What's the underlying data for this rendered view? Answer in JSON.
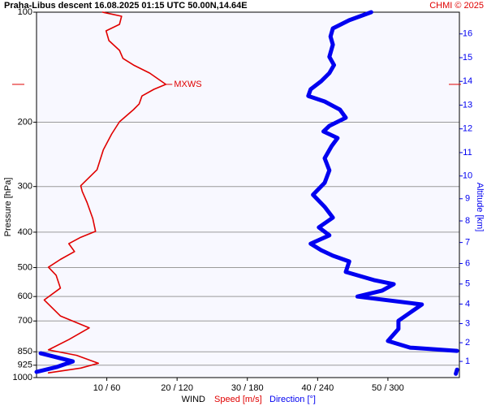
{
  "chart_data": {
    "type": "profile",
    "title": "Praha-Libus  descent   16.08.2025 01:15 UTC  50.00N,14.64E",
    "credit": "CHMI © 2025",
    "ylabel": "Pressure [hPa]",
    "y2label": "Altitude [km]",
    "xlabel": "WIND",
    "ylim": [
      100,
      1000
    ],
    "ylog": true,
    "y_inverted": true,
    "yticks": [
      100,
      200,
      300,
      400,
      500,
      600,
      700,
      850,
      925,
      1000
    ],
    "y2ticks": [
      1,
      2,
      3,
      4,
      5,
      6,
      7,
      8,
      9,
      10,
      11,
      12,
      13,
      14,
      15,
      16
    ],
    "xlim": [
      0,
      60
    ],
    "x2lim": [
      0,
      360
    ],
    "xticks": [
      {
        "value": 10,
        "label": "10 / 60"
      },
      {
        "value": 20,
        "label": "20 / 120"
      },
      {
        "value": 30,
        "label": "30 / 180"
      },
      {
        "value": 40,
        "label": "40 / 240"
      },
      {
        "value": 50,
        "label": "50 / 300"
      }
    ],
    "grid": true,
    "mxws": {
      "label": "MXWS",
      "pressure": 157.6,
      "color": "#e00000"
    },
    "series": [
      {
        "name": "Speed [m/s]",
        "color": "#e00000",
        "axis": "x",
        "y": [
          100,
          102.6,
          108,
          112.5,
          119.6,
          127.2,
          133.8,
          139.5,
          146.8,
          157.6,
          162.6,
          169.6,
          178.4,
          184.8,
          199.5,
          215.4,
          238,
          270,
          298.5,
          309.4,
          332,
          367,
          398,
          413,
          430,
          452,
          475,
          499,
          525,
          569,
          613,
          678,
          731,
          787,
          840,
          869,
          914,
          942,
          971
        ],
        "x": [
          9.4,
          12.1,
          11.8,
          9.9,
          10.3,
          11.8,
          12.3,
          13.8,
          16.1,
          18.4,
          16.7,
          15.0,
          14.6,
          13.8,
          11.8,
          10.7,
          9.5,
          8.6,
          6.3,
          6.5,
          7.2,
          8.0,
          8.4,
          6.3,
          4.6,
          5.4,
          3.4,
          1.7,
          2.8,
          3.4,
          1.1,
          3.4,
          7.5,
          4.6,
          1.7,
          5.7,
          8.8,
          6.3,
          1.7
        ]
      },
      {
        "name": "Direction [°]",
        "color": "#0000f0",
        "axis": "x2",
        "y": [
          100,
          105.2,
          110.8,
          116.6,
          122.7,
          132.5,
          139.5,
          146.8,
          154.5,
          162.6,
          169.6,
          175.6,
          184.8,
          194.5,
          204.7,
          212,
          221,
          232.5,
          251,
          271,
          293,
          316,
          341,
          365,
          388,
          408,
          430,
          448,
          464,
          481,
          514,
          541,
          555,
          578,
          600,
          631,
          664,
          699,
          736,
          794,
          828,
          845,
          null,
          858,
          903,
          936,
          965,
          null,
          951,
          976
        ],
        "x": [
          285.8,
          267,
          253,
          251,
          253,
          250,
          254,
          250,
          243,
          234,
          232,
          246,
          259,
          264,
          250,
          245,
          257,
          252,
          246,
          250,
          246,
          236,
          246,
          253,
          241,
          250,
          234,
          243,
          253,
          267,
          264,
          288,
          305,
          295,
          274,
          329,
          319,
          309,
          309,
          300,
          319,
          359,
          null,
          3.5,
          31,
          17,
          0,
          null,
          359,
          358
        ]
      }
    ]
  }
}
